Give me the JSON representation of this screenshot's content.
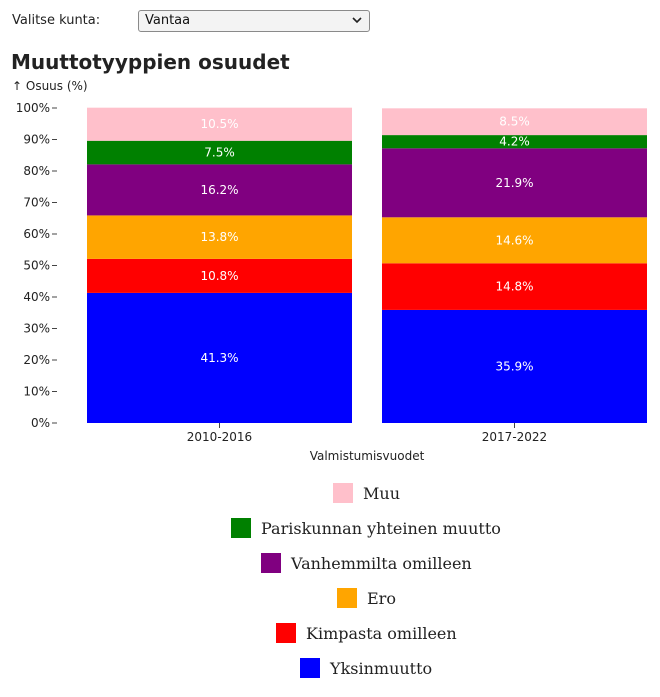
{
  "selector": {
    "label": "Valitse kunta:",
    "value": "Vantaa"
  },
  "chart_data": {
    "type": "bar",
    "stacked": true,
    "title": "Muuttotyyppien osuudet",
    "ylabel": "↑ Osuus (%)",
    "xlabel": "Valmistumisvuodet",
    "ylim": [
      0,
      100
    ],
    "yticks": [
      "0%",
      "10%",
      "20%",
      "30%",
      "40%",
      "50%",
      "60%",
      "70%",
      "80%",
      "90%",
      "100%"
    ],
    "categories": [
      "2010-2016",
      "2017-2022"
    ],
    "series": [
      {
        "name": "Yksinmuutto",
        "color": "#0000ff",
        "values": [
          41.3,
          35.9
        ],
        "labels": [
          "41.3%",
          "35.9%"
        ]
      },
      {
        "name": "Kimpasta omilleen",
        "color": "#ff0000",
        "values": [
          10.8,
          14.8
        ],
        "labels": [
          "10.8%",
          "14.8%"
        ]
      },
      {
        "name": "Ero",
        "color": "#ffa500",
        "values": [
          13.8,
          14.6
        ],
        "labels": [
          "13.8%",
          "14.6%"
        ]
      },
      {
        "name": "Vanhemmilta omilleen",
        "color": "#800080",
        "values": [
          16.2,
          21.9
        ],
        "labels": [
          "16.2%",
          "21.9%"
        ]
      },
      {
        "name": "Pariskunnan yhteinen muutto",
        "color": "#008000",
        "values": [
          7.5,
          4.2
        ],
        "labels": [
          "7.5%",
          "4.2%"
        ]
      },
      {
        "name": "Muu",
        "color": "#ffc0cb",
        "values": [
          10.5,
          8.5
        ],
        "labels": [
          "10.5%",
          "8.5%"
        ]
      }
    ],
    "legend_order": [
      "Muu",
      "Pariskunnan yhteinen muutto",
      "Vanhemmilta omilleen",
      "Ero",
      "Kimpasta omilleen",
      "Yksinmuutto"
    ],
    "legend_placement": "bottom-center",
    "grid": false
  }
}
